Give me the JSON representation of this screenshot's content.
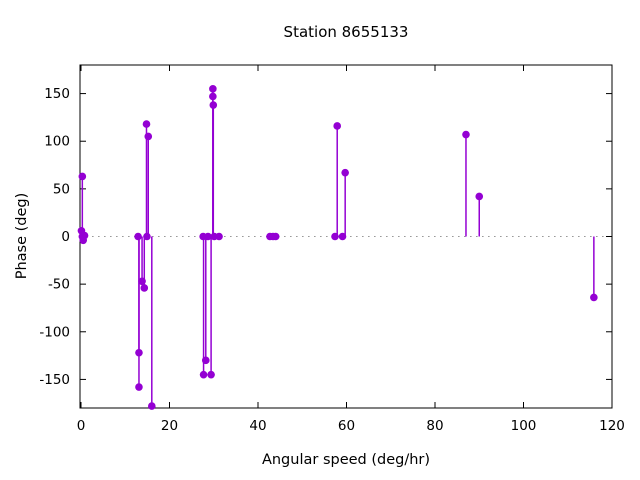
{
  "window": {
    "background": "#ffffff",
    "text_color": "#000000"
  },
  "chart_data": {
    "type": "stem",
    "title": "Station 8655133",
    "xlabel": "Angular speed (deg/hr)",
    "ylabel": "Phase (deg)",
    "xlim": [
      0,
      120
    ],
    "ylim": [
      -180,
      180
    ],
    "xticks": [
      0,
      20,
      40,
      60,
      80,
      100,
      120
    ],
    "yticks": [
      -150,
      -100,
      -50,
      0,
      50,
      100,
      150
    ],
    "grid": "zero-line-dotted-only",
    "legend_position": "none",
    "series_color": "#9400D3",
    "zero_line_color": "#999999",
    "axis_color": "#000000",
    "points": [
      [
        0.3,
        63
      ],
      [
        0.1,
        6
      ],
      [
        0.3,
        0
      ],
      [
        0.8,
        1
      ],
      [
        0.5,
        -4
      ],
      [
        12.9,
        0
      ],
      [
        13.1,
        -122
      ],
      [
        13.1,
        -158
      ],
      [
        13.8,
        -47
      ],
      [
        14.3,
        -54
      ],
      [
        14.8,
        118
      ],
      [
        14.9,
        0
      ],
      [
        15.2,
        105
      ],
      [
        16.0,
        -178
      ],
      [
        27.6,
        0
      ],
      [
        27.7,
        -145
      ],
      [
        28.2,
        -130
      ],
      [
        28.7,
        0
      ],
      [
        29.4,
        -145
      ],
      [
        29.8,
        155
      ],
      [
        29.8,
        147
      ],
      [
        29.9,
        138
      ],
      [
        30.1,
        0
      ],
      [
        31.2,
        0
      ],
      [
        42.7,
        0
      ],
      [
        43.4,
        0
      ],
      [
        44.0,
        0
      ],
      [
        57.4,
        0
      ],
      [
        57.9,
        116
      ],
      [
        59.1,
        0
      ],
      [
        59.7,
        67
      ],
      [
        87.0,
        107
      ],
      [
        90.0,
        42
      ],
      [
        115.9,
        -64
      ]
    ]
  }
}
